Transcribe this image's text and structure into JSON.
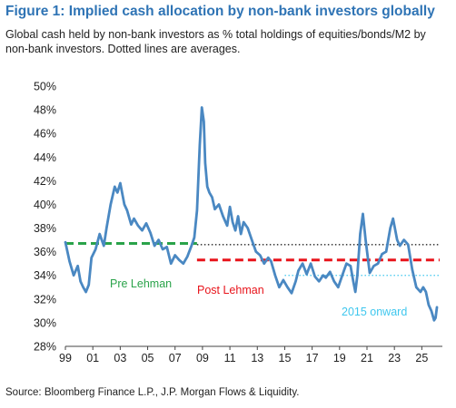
{
  "figure_title": "Figure 1: Implied cash allocation by non-bank investors globally",
  "subtitle": "Global cash held by non-bank investors as % total holdings of equities/bonds/M2 by non-bank investors. Dotted lines are averages.",
  "source": "Source: Bloomberg Finance L.P., J.P. Morgan Flows & Liquidity.",
  "colors": {
    "title": "#2f74b5",
    "series": "#4a88c2",
    "pre_lehman": "#2aa34a",
    "post_lehman": "#e8141b",
    "onward_2015": "#3fc7ee",
    "avg_dotted": "#222222"
  },
  "chart_data": {
    "type": "line",
    "ylim": [
      28,
      50
    ],
    "xlim": [
      1999,
      2026.5
    ],
    "y_tick_labels": [
      "50%",
      "48%",
      "46%",
      "44%",
      "42%",
      "40%",
      "38%",
      "36%",
      "34%",
      "32%",
      "30%",
      "28%"
    ],
    "x_tick_labels": [
      "99",
      "01",
      "03",
      "05",
      "07",
      "09",
      "11",
      "13",
      "15",
      "17",
      "19",
      "21",
      "23",
      "25"
    ],
    "x_tick_years": [
      1999,
      2001,
      2003,
      2005,
      2007,
      2009,
      2011,
      2013,
      2015,
      2017,
      2019,
      2021,
      2023,
      2025
    ],
    "series": [
      {
        "x": [
          1999.0,
          1999.3,
          1999.6,
          1999.9,
          2000.1,
          2000.3,
          2000.5,
          2000.7,
          2000.9,
          2001.2,
          2001.5,
          2001.8,
          2002.0,
          2002.3,
          2002.6,
          2002.8,
          2003.0,
          2003.3,
          2003.5,
          2003.8,
          2004.0,
          2004.3,
          2004.6,
          2004.9,
          2005.2,
          2005.5,
          2005.8,
          2006.1,
          2006.4,
          2006.7,
          2007.0,
          2007.3,
          2007.6,
          2007.9,
          2008.2,
          2008.4,
          2008.6,
          2008.8,
          2008.95,
          2009.1,
          2009.2,
          2009.35,
          2009.5,
          2009.7,
          2009.9,
          2010.2,
          2010.5,
          2010.8,
          2011.0,
          2011.2,
          2011.4,
          2011.6,
          2011.8,
          2012.0,
          2012.3,
          2012.6,
          2012.9,
          2013.2,
          2013.5,
          2013.8,
          2014.0,
          2014.3,
          2014.6,
          2014.9,
          2015.2,
          2015.5,
          2015.8,
          2016.0,
          2016.3,
          2016.6,
          2016.9,
          2017.2,
          2017.5,
          2017.8,
          2018.0,
          2018.3,
          2018.6,
          2018.9,
          2019.2,
          2019.5,
          2019.8,
          2020.0,
          2020.15,
          2020.3,
          2020.5,
          2020.7,
          2020.9,
          2021.2,
          2021.5,
          2021.8,
          2022.1,
          2022.4,
          2022.7,
          2022.9,
          2023.2,
          2023.4,
          2023.7,
          2024.0,
          2024.3,
          2024.6,
          2024.9,
          2025.1,
          2025.3,
          2025.5,
          2025.7,
          2025.9,
          2026.0,
          2026.1
        ],
        "values": [
          36.8,
          35.2,
          34.0,
          34.8,
          33.5,
          33.0,
          32.6,
          33.2,
          35.5,
          36.2,
          37.5,
          36.5,
          38.0,
          40.0,
          41.5,
          41.0,
          41.8,
          40.0,
          39.5,
          38.3,
          38.8,
          38.2,
          37.8,
          38.4,
          37.6,
          36.5,
          37.0,
          36.2,
          36.4,
          35.0,
          35.7,
          35.3,
          35.0,
          35.6,
          36.5,
          37.2,
          39.5,
          45.0,
          48.2,
          47.0,
          43.5,
          41.5,
          41.0,
          40.6,
          39.6,
          40.0,
          39.0,
          38.2,
          39.8,
          38.5,
          37.8,
          39.0,
          37.5,
          38.5,
          38.0,
          37.0,
          36.0,
          35.7,
          35.0,
          35.5,
          35.2,
          34.0,
          33.0,
          33.6,
          33.0,
          32.5,
          33.5,
          34.4,
          35.0,
          34.1,
          35.0,
          33.9,
          33.5,
          34.0,
          33.8,
          34.3,
          33.5,
          33.0,
          34.0,
          35.0,
          34.8,
          33.5,
          32.6,
          34.0,
          37.5,
          39.2,
          37.0,
          34.2,
          34.8,
          35.0,
          35.8,
          36.0,
          38.0,
          38.8,
          37.0,
          36.5,
          37.0,
          36.6,
          34.5,
          33.0,
          32.6,
          33.0,
          32.6,
          31.5,
          31.0,
          30.2,
          30.4,
          31.3
        ]
      }
    ],
    "averages": [
      {
        "label": "Pre Lehman",
        "value": 36.7,
        "from": 1999,
        "to": 2008.6,
        "style": "dashed",
        "color": "#2aa34a"
      },
      {
        "label": "Post Lehman",
        "value": 35.3,
        "from": 2008.6,
        "to": 2026.3,
        "style": "dashed",
        "color": "#e8141b"
      },
      {
        "label": "2015 onward",
        "value": 34.0,
        "from": 2015.0,
        "to": 2026.3,
        "style": "dotted",
        "color": "#3fc7ee"
      },
      {
        "label": "",
        "value": 36.6,
        "from": 2008.6,
        "to": 2026.3,
        "style": "dotted",
        "color": "#222222"
      }
    ],
    "annotations": [
      {
        "text": "Pre Lehman",
        "color": "#2aa34a"
      },
      {
        "text": "Post Lehman",
        "color": "#e8141b"
      },
      {
        "text": "2015 onward",
        "color": "#3fc7ee"
      }
    ]
  }
}
